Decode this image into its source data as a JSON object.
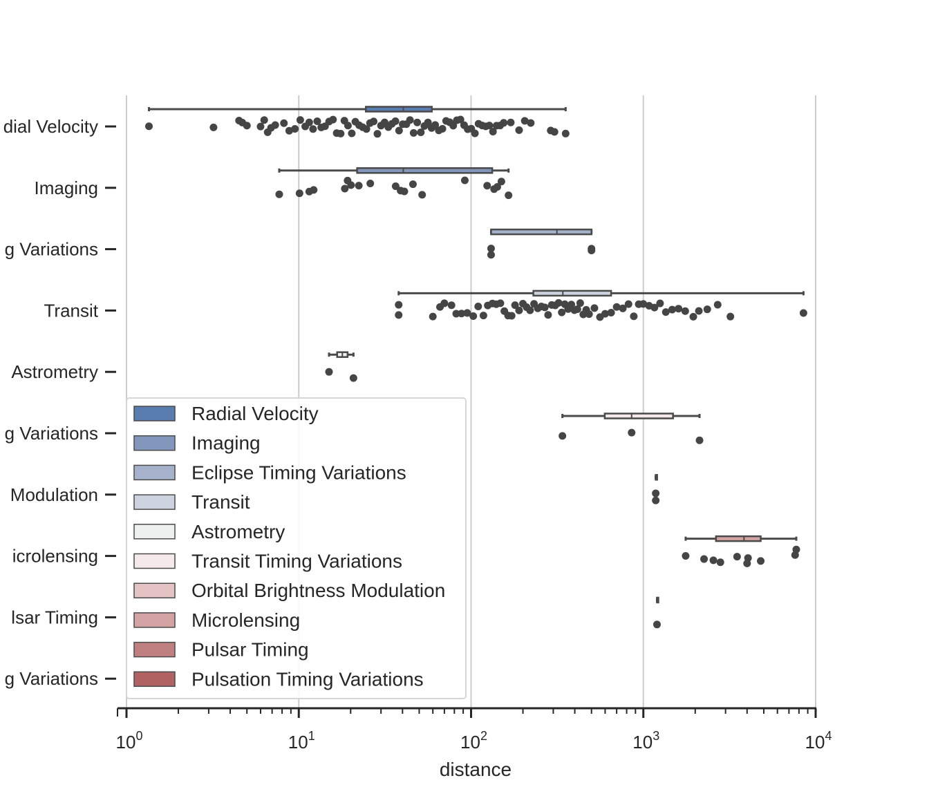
{
  "chart_data": {
    "type": "box",
    "orientation": "horizontal",
    "xscale": "log",
    "xlim": [
      1,
      10000
    ],
    "xlabel": "distance",
    "ylabel": "",
    "grid": "vertical",
    "legend_placement": "lower-left",
    "x_ticks": [
      {
        "base": "10",
        "exp": "0",
        "value": 1
      },
      {
        "base": "10",
        "exp": "1",
        "value": 10
      },
      {
        "base": "10",
        "exp": "2",
        "value": 100
      },
      {
        "base": "10",
        "exp": "3",
        "value": 1000
      },
      {
        "base": "10",
        "exp": "4",
        "value": 10000
      }
    ],
    "visible_category_labels": [
      "dial Velocity",
      "Imaging",
      "g Variations",
      "Transit",
      "Astrometry",
      "g Variations",
      "Modulation",
      "icrolensing",
      "lsar Timing",
      "g Variations"
    ],
    "categories": [
      "Radial Velocity",
      "Imaging",
      "Eclipse Timing Variations",
      "Transit",
      "Astrometry",
      "Transit Timing Variations",
      "Orbital Brightness Modulation",
      "Microlensing",
      "Pulsar Timing",
      "Pulsation Timing Variations"
    ],
    "colors": [
      "#5a7db0",
      "#8396bb",
      "#a6b2cb",
      "#ccd2de",
      "#eeefef",
      "#f5e9e9",
      "#e3c3c4",
      "#d3a2a2",
      "#c08081",
      "#b06263"
    ],
    "box_color": "#4a4a4a",
    "series": [
      {
        "name": "Radial Velocity",
        "whislo": 1.35,
        "q1": 24.5,
        "med": 40.4,
        "q3": 59.2,
        "whishi": 354
      },
      {
        "name": "Imaging",
        "whislo": 7.7,
        "q1": 21.8,
        "med": 40.4,
        "q3": 132.7,
        "whishi": 165
      },
      {
        "name": "Eclipse Timing Variations",
        "whislo": 130.7,
        "q1": 130.7,
        "med": 315,
        "q3": 500,
        "whishi": 500
      },
      {
        "name": "Transit",
        "whislo": 38,
        "q1": 230,
        "med": 341,
        "q3": 650,
        "whishi": 8500
      },
      {
        "name": "Astrometry",
        "whislo": 14.98,
        "q1": 16.7,
        "med": 17.9,
        "q3": 19.2,
        "whishi": 20.77
      },
      {
        "name": "Transit Timing Variations",
        "whislo": 339,
        "q1": 597,
        "med": 855,
        "q3": 1487,
        "whishi": 2119
      },
      {
        "name": "Orbital Brightness Modulation",
        "whislo": 1180,
        "q1": 1180,
        "med": 1180,
        "q3": 1180,
        "whishi": 1180
      },
      {
        "name": "Microlensing",
        "whislo": 1760,
        "q1": 2640,
        "med": 3840,
        "q3": 4800,
        "whishi": 7720
      },
      {
        "name": "Pulsar Timing",
        "whislo": 1200,
        "q1": 1200,
        "med": 1200,
        "q3": 1200,
        "whishi": 1200
      },
      {
        "name": "Pulsation Timing Variations",
        "whislo": null,
        "q1": null,
        "med": null,
        "q3": null,
        "whishi": null
      }
    ],
    "strip_points": [
      {
        "category": "Radial Velocity",
        "values": [
          1.35,
          3.2,
          4.5,
          4.7,
          5.0,
          6.0,
          6.3,
          6.6,
          6.9,
          7.3,
          8.2,
          8.8,
          9.5,
          10.2,
          10.9,
          11.5,
          12.1,
          12.8,
          13.5,
          14.2,
          15.0,
          15.8,
          16.6,
          17.5,
          18.4,
          19.3,
          20.3,
          21.3,
          22.4,
          23.5,
          24.7,
          25.9,
          27.2,
          28.6,
          30.0,
          31.5,
          33.1,
          34.7,
          36.4,
          38.2,
          40.1,
          42.1,
          44.2,
          46.4,
          48.7,
          51.1,
          53.6,
          56.2,
          59.0,
          61.9,
          65.0,
          68.2,
          71.6,
          75.1,
          78.8,
          82.7,
          86.8,
          91.1,
          95.6,
          100.3,
          105.3,
          110.5,
          116.0,
          121.7,
          127.7,
          134.0,
          140.6,
          147.5,
          154.7,
          170.0,
          190.0,
          205.0,
          222.0,
          290.0,
          305.0,
          354.0
        ]
      },
      {
        "category": "Imaging",
        "values": [
          7.7,
          10.1,
          11.5,
          12.2,
          18.5,
          19.2,
          20.1,
          22.3,
          26.0,
          36.5,
          39.0,
          41.0,
          46.0,
          52.0,
          92.0,
          124.0,
          136.0,
          142.0,
          150.0,
          165.0
        ]
      },
      {
        "category": "Eclipse Timing Variations",
        "values": [
          130.7,
          130.7,
          500,
          500
        ]
      },
      {
        "category": "Transit",
        "values": [
          38,
          38,
          60,
          66,
          70,
          77,
          82,
          88,
          95,
          103,
          110,
          118,
          125,
          133,
          140,
          148,
          156,
          164,
          172,
          180,
          190,
          200,
          210,
          220,
          232,
          244,
          256,
          268,
          280,
          294,
          308,
          322,
          336,
          350,
          366,
          382,
          398,
          414,
          430,
          448,
          466,
          484,
          520,
          560,
          600,
          650,
          700,
          760,
          820,
          880,
          940,
          1000,
          1080,
          1160,
          1250,
          1350,
          1470,
          1600,
          1750,
          1950,
          2100,
          2350,
          2700,
          3200,
          8500
        ]
      },
      {
        "category": "Astrometry",
        "values": [
          14.98,
          20.77
        ]
      },
      {
        "category": "Transit Timing Variations",
        "values": [
          339,
          855,
          2119
        ]
      },
      {
        "category": "Orbital Brightness Modulation",
        "values": [
          1180,
          1180
        ]
      },
      {
        "category": "Microlensing",
        "values": [
          1760,
          2250,
          2550,
          2800,
          3500,
          4000,
          4050,
          4800,
          7600,
          7720
        ]
      },
      {
        "category": "Pulsar Timing",
        "values": [
          1200
        ]
      },
      {
        "category": "Pulsation Timing Variations",
        "values": []
      }
    ]
  }
}
